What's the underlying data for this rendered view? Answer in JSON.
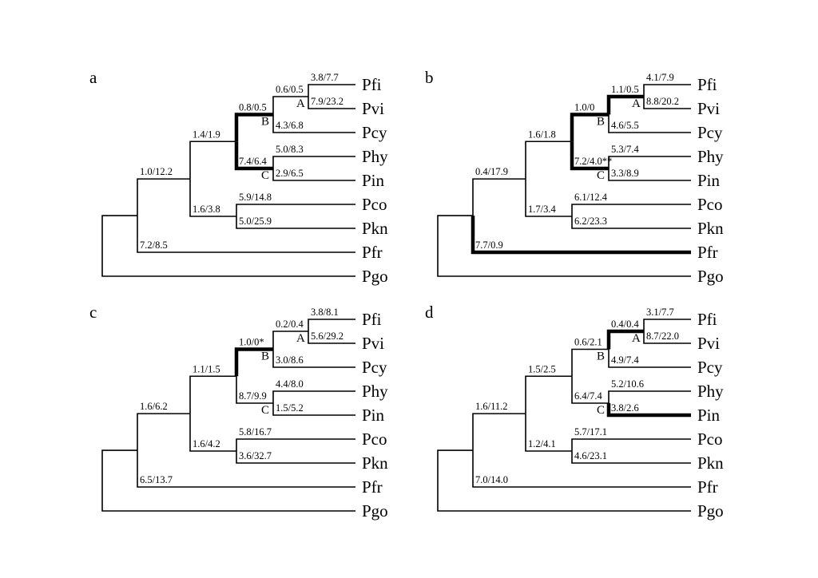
{
  "figure": {
    "tips": [
      "Pfi",
      "Pvi",
      "Pcy",
      "Phy",
      "Pin",
      "Pco",
      "Pkn",
      "Pfr",
      "Pgo"
    ],
    "clade_labels": {
      "A": "A",
      "B": "B",
      "C": "C"
    },
    "line_color": "#000000",
    "panels": [
      {
        "letter": "a",
        "branch_labels": {
          "Pfi": "3.8/7.7",
          "Pvi": "7.9/23.2",
          "A": "0.6/0.5",
          "B": "0.8/0.5",
          "Pcy": "4.3/6.8",
          "Phy": "5.0/8.3",
          "Pin": "2.9/6.5",
          "C": "7.4/6.4",
          "BC": "1.4/1.9",
          "Pco": "5.9/14.8",
          "Pkn": "5.0/25.9",
          "PcoPkn": "1.6/3.8",
          "N2": "1.0/12.2",
          "Pfr": "7.2/8.5"
        },
        "bold_branches": [
          "B",
          "C"
        ]
      },
      {
        "letter": "b",
        "branch_labels": {
          "Pfi": "4.1/7.9",
          "Pvi": "8.8/20.2",
          "A": "1.1/0.5",
          "B": "1.0/0",
          "Pcy": "4.6/5.5",
          "Phy": "5.3/7.4",
          "Pin": "3.3/8.9",
          "C": "7.2/4.0**",
          "BC": "1.6/1.8",
          "Pco": "6.1/12.4",
          "Pkn": "6.2/23.3",
          "PcoPkn": "1.7/3.4",
          "N2": "0.4/17.9",
          "Pfr": "7.7/0.9"
        },
        "bold_branches": [
          "A",
          "B",
          "C",
          "Pfr"
        ]
      },
      {
        "letter": "c",
        "branch_labels": {
          "Pfi": "3.8/8.1",
          "Pvi": "5.6/29.2",
          "A": "0.2/0.4",
          "B": "1.0/0*",
          "Pcy": "3.0/8.6",
          "Phy": "4.4/8.0",
          "Pin": "1.5/5.2",
          "C": "8.7/9.9",
          "BC": "1.1/1.5",
          "Pco": "5.8/16.7",
          "Pkn": "3.6/32.7",
          "PcoPkn": "1.6/4.2",
          "N2": "1.6/6.2",
          "Pfr": "6.5/13.7"
        },
        "bold_branches": [
          "B"
        ]
      },
      {
        "letter": "d",
        "branch_labels": {
          "Pfi": "3.1/7.7",
          "Pvi": "8.7/22.0",
          "A": "0.4/0.4",
          "B": "0.6/2.1",
          "Pcy": "4.9/7.4",
          "Phy": "5.2/10.6",
          "Pin": "3.8/2.6",
          "C": "6.4/7.4",
          "BC": "1.5/2.5",
          "Pco": "5.7/17.1",
          "Pkn": "4.6/23.1",
          "PcoPkn": "1.2/4.1",
          "N2": "1.6/11.2",
          "Pfr": "7.0/14.0"
        },
        "bold_branches": [
          "A",
          "Pin"
        ]
      }
    ]
  }
}
